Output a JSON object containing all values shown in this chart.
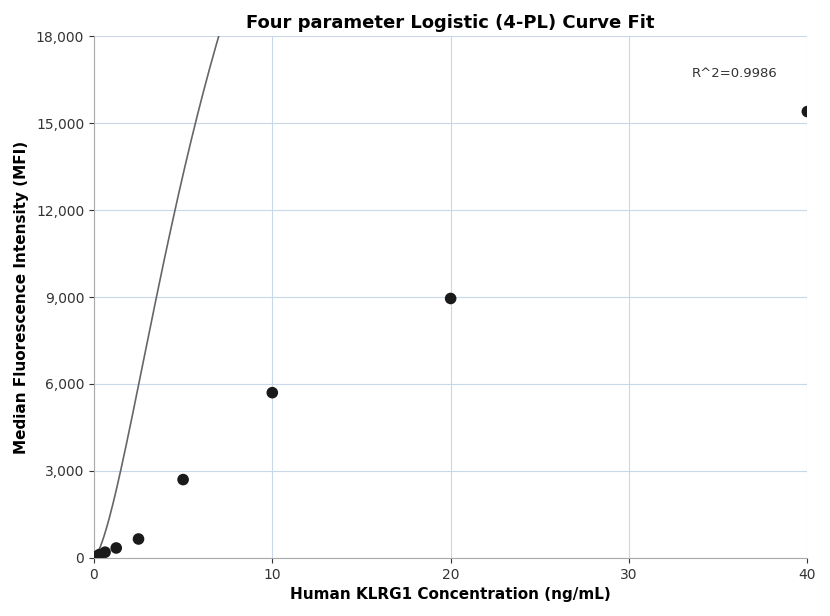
{
  "title": "Four parameter Logistic (4-PL) Curve Fit",
  "xlabel": "Human KLRG1 Concentration (ng/mL)",
  "ylabel": "Median Fluorescence Intensity (MFI)",
  "scatter_points": [
    [
      0.156,
      55
    ],
    [
      0.313,
      115
    ],
    [
      0.625,
      195
    ],
    [
      1.25,
      340
    ],
    [
      2.5,
      650
    ],
    [
      5.0,
      2700
    ],
    [
      10.0,
      5700
    ],
    [
      20.0,
      8950
    ],
    [
      40.0,
      15400
    ]
  ],
  "r_squared_text": "R^2=0.9986",
  "r_squared_x": 33.5,
  "r_squared_y": 16500,
  "xlim": [
    0,
    40
  ],
  "ylim": [
    0,
    18000
  ],
  "xticks": [
    0,
    10,
    20,
    30,
    40
  ],
  "yticks": [
    0,
    3000,
    6000,
    9000,
    12000,
    15000,
    18000
  ],
  "dot_color": "#1a1a1a",
  "line_color": "#666666",
  "grid_color": "#c8d8e8",
  "bg_color": "#ffffff",
  "title_fontsize": 13,
  "label_fontsize": 11,
  "tick_fontsize": 10
}
